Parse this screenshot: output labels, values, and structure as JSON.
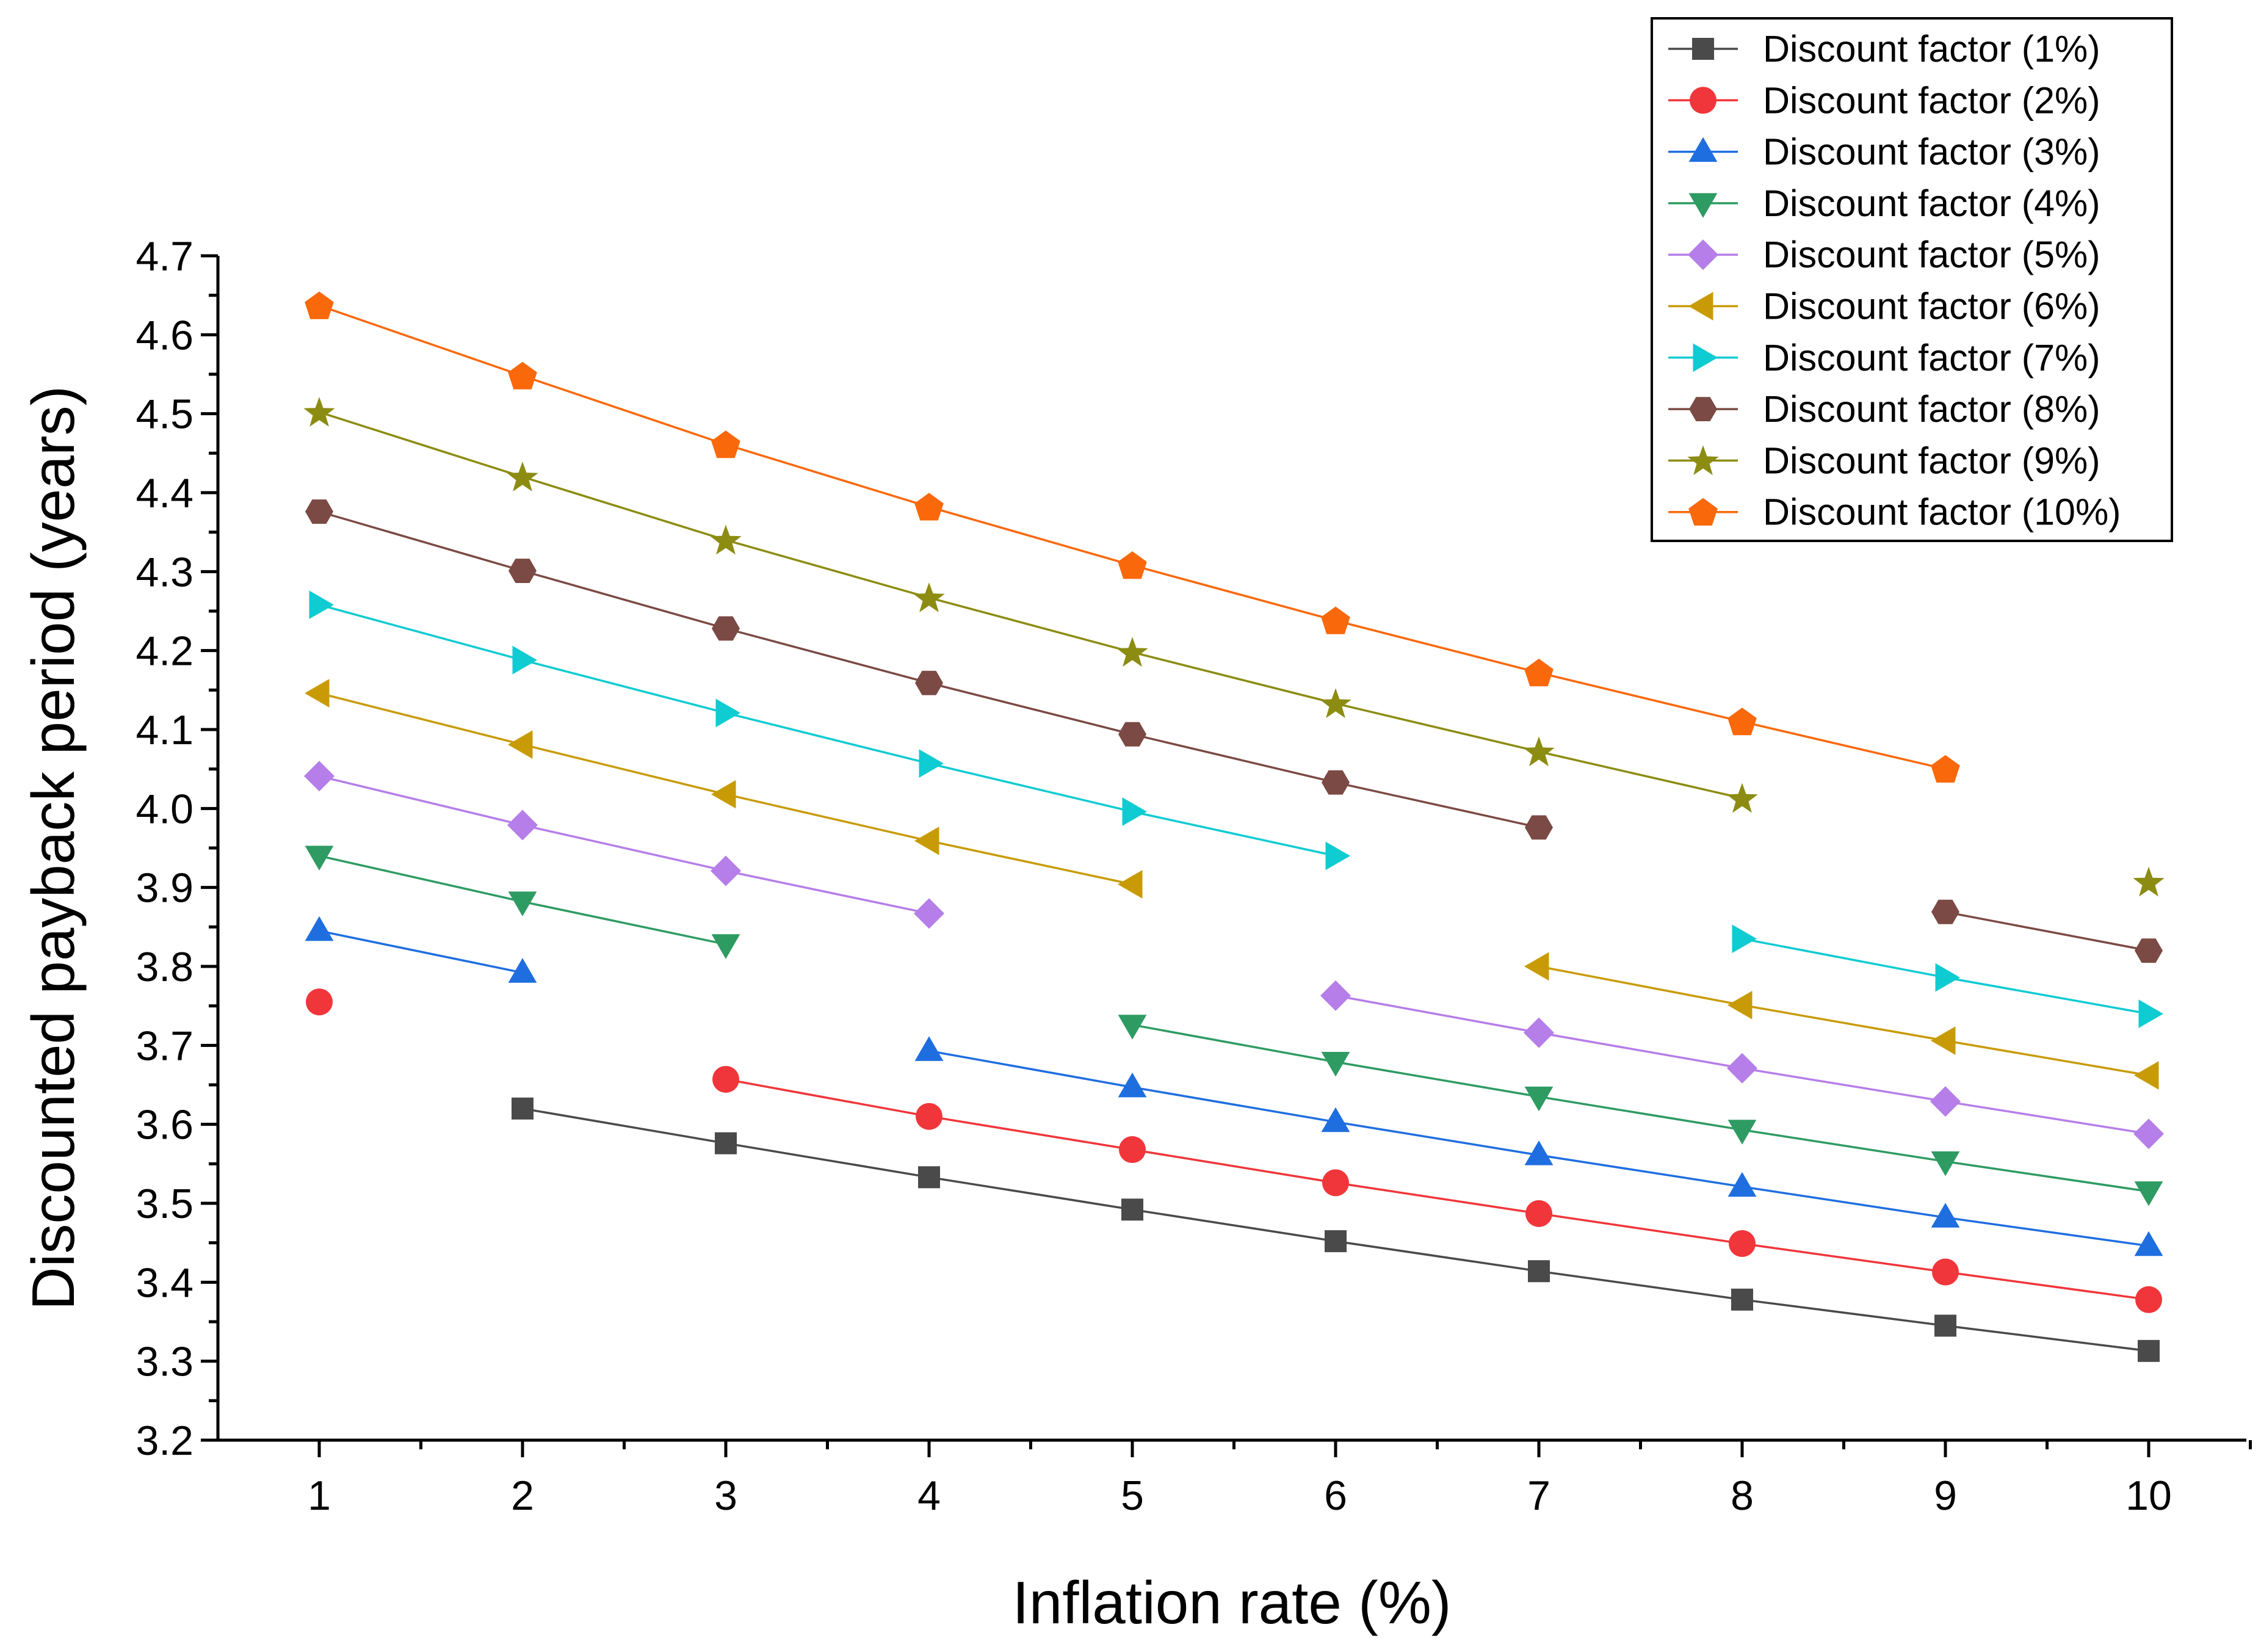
{
  "chart_data": {
    "type": "line",
    "title": "",
    "xlabel": "Inflation rate (%)",
    "ylabel": "Discounted payback period (years)",
    "xlim": [
      0.5,
      10.5
    ],
    "ylim": [
      3.2,
      4.7
    ],
    "x_ticks": [
      1,
      2,
      3,
      4,
      5,
      6,
      7,
      8,
      9,
      10
    ],
    "y_ticks": [
      3.2,
      3.3,
      3.4,
      3.5,
      3.6,
      3.7,
      3.8,
      3.9,
      4.0,
      4.1,
      4.2,
      4.3,
      4.4,
      4.5,
      4.6,
      4.7
    ],
    "y_tick_labels": [
      "3.2",
      "3.3",
      "3.4",
      "3.5",
      "3.6",
      "3.7",
      "3.8",
      "3.9",
      "4.0",
      "4.1",
      "4.2",
      "4.3",
      "4.4",
      "4.5",
      "4.6",
      "4.7"
    ],
    "grid": false,
    "legend_position": "top-right",
    "series": [
      {
        "name": "Discount factor (1%)",
        "color": "#4a4a4a",
        "marker": "square",
        "segments": [
          [
            [
              2,
              3.62
            ],
            [
              3,
              3.576
            ],
            [
              4,
              3.533
            ],
            [
              5,
              3.492
            ],
            [
              6,
              3.452
            ],
            [
              7,
              3.414
            ],
            [
              8,
              3.378
            ],
            [
              9,
              3.345
            ],
            [
              10,
              3.313
            ]
          ]
        ]
      },
      {
        "name": "Discount factor (2%)",
        "color": "#f0363a",
        "marker": "circle",
        "segments": [
          [
            [
              1,
              3.755
            ]
          ],
          [
            [
              3,
              3.657
            ],
            [
              4,
              3.61
            ],
            [
              5,
              3.568
            ],
            [
              6,
              3.526
            ],
            [
              7,
              3.487
            ],
            [
              8,
              3.449
            ],
            [
              9,
              3.413
            ],
            [
              10,
              3.378
            ]
          ]
        ]
      },
      {
        "name": "Discount factor (3%)",
        "color": "#1f6ee0",
        "marker": "triangle-up",
        "segments": [
          [
            [
              1,
              3.845
            ],
            [
              2,
              3.792
            ]
          ],
          [
            [
              4,
              3.693
            ],
            [
              5,
              3.647
            ],
            [
              6,
              3.603
            ],
            [
              7,
              3.561
            ],
            [
              8,
              3.521
            ],
            [
              9,
              3.482
            ],
            [
              10,
              3.446
            ]
          ]
        ]
      },
      {
        "name": "Discount factor (4%)",
        "color": "#2e9b63",
        "marker": "triangle-down",
        "segments": [
          [
            [
              1,
              3.94
            ],
            [
              2,
              3.882
            ],
            [
              3,
              3.828
            ]
          ],
          [
            [
              5,
              3.726
            ],
            [
              6,
              3.679
            ],
            [
              7,
              3.635
            ],
            [
              8,
              3.593
            ],
            [
              9,
              3.553
            ],
            [
              10,
              3.515
            ]
          ]
        ]
      },
      {
        "name": "Discount factor (5%)",
        "color": "#b57ee8",
        "marker": "diamond",
        "segments": [
          [
            [
              1,
              4.041
            ],
            [
              2,
              3.979
            ],
            [
              3,
              3.921
            ],
            [
              4,
              3.867
            ]
          ],
          [
            [
              6,
              3.763
            ],
            [
              7,
              3.716
            ],
            [
              8,
              3.671
            ],
            [
              9,
              3.629
            ],
            [
              10,
              3.588
            ]
          ]
        ]
      },
      {
        "name": "Discount factor (6%)",
        "color": "#c89b06",
        "marker": "triangle-left",
        "segments": [
          [
            [
              1,
              4.146
            ],
            [
              2,
              4.081
            ],
            [
              3,
              4.018
            ],
            [
              4,
              3.959
            ],
            [
              5,
              3.904
            ]
          ],
          [
            [
              7,
              3.8
            ],
            [
              8,
              3.751
            ],
            [
              9,
              3.706
            ],
            [
              10,
              3.662
            ]
          ]
        ]
      },
      {
        "name": "Discount factor (7%)",
        "color": "#0fcbd2",
        "marker": "triangle-right",
        "segments": [
          [
            [
              1,
              4.258
            ],
            [
              2,
              4.188
            ],
            [
              3,
              4.121
            ],
            [
              4,
              4.057
            ],
            [
              5,
              3.996
            ],
            [
              6,
              3.94
            ]
          ],
          [
            [
              8,
              3.835
            ],
            [
              9,
              3.786
            ],
            [
              10,
              3.74
            ]
          ]
        ]
      },
      {
        "name": "Discount factor (8%)",
        "color": "#7b4a44",
        "marker": "hexagon",
        "segments": [
          [
            [
              1,
              4.376
            ],
            [
              2,
              4.301
            ],
            [
              3,
              4.228
            ],
            [
              4,
              4.159
            ],
            [
              5,
              4.094
            ],
            [
              6,
              4.033
            ],
            [
              7,
              3.976
            ]
          ],
          [
            [
              9,
              3.869
            ],
            [
              10,
              3.82
            ]
          ]
        ]
      },
      {
        "name": "Discount factor (9%)",
        "color": "#8c8c12",
        "marker": "star",
        "segments": [
          [
            [
              1,
              4.502
            ],
            [
              2,
              4.42
            ],
            [
              3,
              4.34
            ],
            [
              4,
              4.267
            ],
            [
              5,
              4.198
            ],
            [
              6,
              4.133
            ],
            [
              7,
              4.072
            ],
            [
              8,
              4.013
            ]
          ],
          [
            [
              10,
              3.907
            ]
          ]
        ]
      },
      {
        "name": "Discount factor (10%)",
        "color": "#f9680a",
        "marker": "pentagon",
        "segments": [
          [
            [
              1,
              4.637
            ],
            [
              2,
              4.548
            ],
            [
              3,
              4.461
            ],
            [
              4,
              4.382
            ],
            [
              5,
              4.308
            ],
            [
              6,
              4.238
            ],
            [
              7,
              4.172
            ],
            [
              8,
              4.11
            ],
            [
              9,
              4.05
            ]
          ]
        ]
      }
    ]
  }
}
